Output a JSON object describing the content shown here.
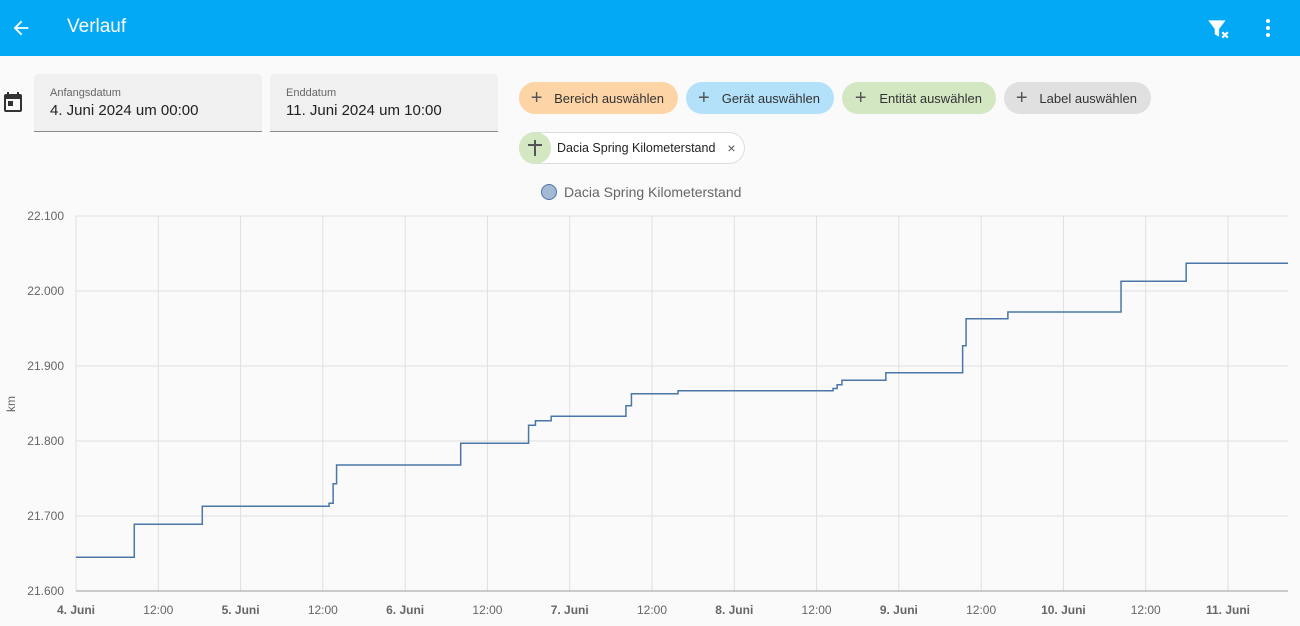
{
  "header": {
    "title": "Verlauf"
  },
  "date_range": {
    "start": {
      "label": "Anfangsdatum",
      "value": "4. Juni 2024 um 00:00"
    },
    "end": {
      "label": "Enddatum",
      "value": "11. Juni 2024 um 10:00"
    }
  },
  "target_picker": {
    "chips": [
      {
        "label": "Bereich auswählen",
        "color": "#fdd4a6"
      },
      {
        "label": "Gerät auswählen",
        "color": "#b3e1f9"
      },
      {
        "label": "Entität auswählen",
        "color": "#d2e7c2"
      },
      {
        "label": "Label auswählen",
        "color": "#e0e0e0"
      }
    ],
    "selected": [
      {
        "label": "Dacia Spring Kilometerstand"
      }
    ]
  },
  "chart_data": {
    "type": "step",
    "ylabel": "km",
    "series": [
      {
        "name": "Dacia Spring Kilometerstand",
        "color": "#4a77a8",
        "x": [
          "2024-06-04T00:00",
          "2024-06-04T08:30",
          "2024-06-04T18:25",
          "2024-06-05T12:54",
          "2024-06-05T13:30",
          "2024-06-05T14:00",
          "2024-06-06T08:06",
          "2024-06-06T18:00",
          "2024-06-06T19:00",
          "2024-06-06T21:18",
          "2024-06-07T08:12",
          "2024-06-07T09:00",
          "2024-06-07T15:48",
          "2024-06-08T14:24",
          "2024-06-08T15:00",
          "2024-06-08T15:42",
          "2024-06-08T22:06",
          "2024-06-09T09:18",
          "2024-06-09T09:48",
          "2024-06-09T15:54",
          "2024-06-10T08:24",
          "2024-06-10T17:54"
        ],
        "values": [
          21645,
          21689,
          21713,
          21717,
          21743,
          21768,
          21797,
          21821,
          21827,
          21833,
          21847,
          21863,
          21867,
          21870,
          21875,
          21881,
          21891,
          21927,
          21963,
          21972,
          22013,
          22037
        ]
      }
    ],
    "xlim": [
      "2024-06-04T00:00",
      "2024-06-11T08:45"
    ],
    "xticks": [
      {
        "value": "2024-06-04T00:00",
        "label": "4. Juni"
      },
      {
        "value": "2024-06-04T12:00",
        "label": "12:00"
      },
      {
        "value": "2024-06-05T00:00",
        "label": "5. Juni"
      },
      {
        "value": "2024-06-05T12:00",
        "label": "12:00"
      },
      {
        "value": "2024-06-06T00:00",
        "label": "6. Juni"
      },
      {
        "value": "2024-06-06T12:00",
        "label": "12:00"
      },
      {
        "value": "2024-06-07T00:00",
        "label": "7. Juni"
      },
      {
        "value": "2024-06-07T12:00",
        "label": "12:00"
      },
      {
        "value": "2024-06-08T00:00",
        "label": "8. Juni"
      },
      {
        "value": "2024-06-08T12:00",
        "label": "12:00"
      },
      {
        "value": "2024-06-09T00:00",
        "label": "9. Juni"
      },
      {
        "value": "2024-06-09T12:00",
        "label": "12:00"
      },
      {
        "value": "2024-06-10T00:00",
        "label": "10. Juni"
      },
      {
        "value": "2024-06-10T12:00",
        "label": "12:00"
      },
      {
        "value": "2024-06-11T00:00",
        "label": "11. Juni"
      }
    ],
    "ylim": [
      21600,
      22100
    ],
    "yticks": [
      {
        "value": 21600,
        "label": "21.600"
      },
      {
        "value": 21700,
        "label": "21.700"
      },
      {
        "value": 21800,
        "label": "21.800"
      },
      {
        "value": 21900,
        "label": "21.900"
      },
      {
        "value": 22000,
        "label": "22.000"
      },
      {
        "value": 22100,
        "label": "22.100"
      }
    ],
    "grid": true
  }
}
